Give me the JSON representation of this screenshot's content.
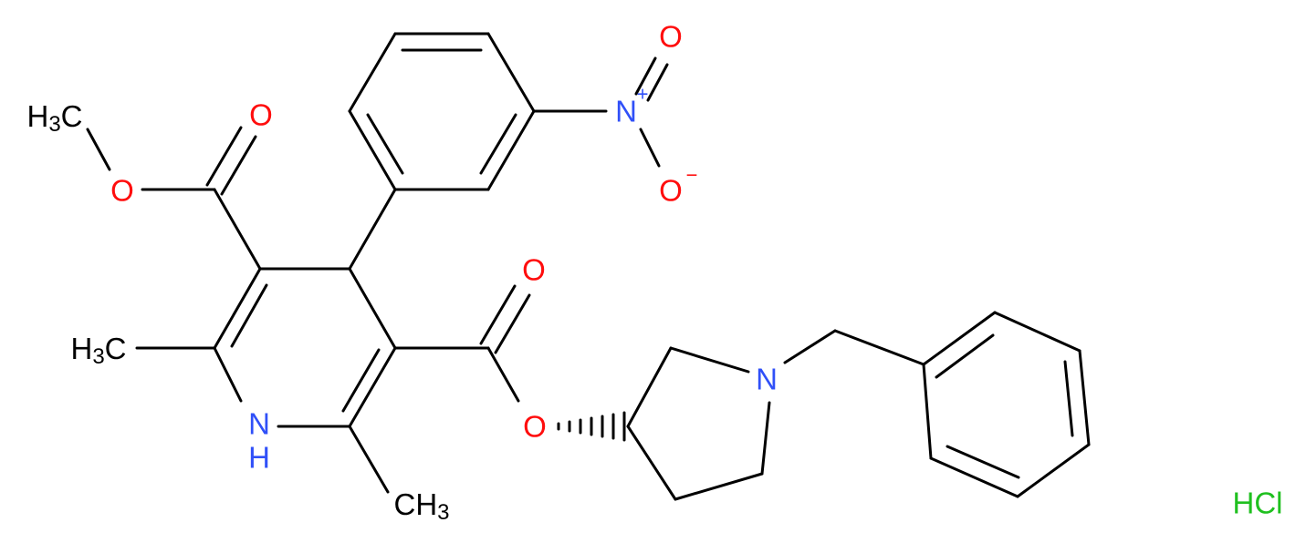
{
  "atoms": [
    {
      "label": "H3C"
    },
    {
      "label": "O"
    },
    {
      "label": "O"
    },
    {
      "label": "N",
      "charge": "+"
    },
    {
      "label": "O"
    },
    {
      "label": "O",
      "charge": "−"
    },
    {
      "label": "H3C"
    },
    {
      "label": "N"
    },
    {
      "label": "H"
    },
    {
      "label": "CH3"
    },
    {
      "label": "O"
    },
    {
      "label": "O"
    },
    {
      "label": "N"
    }
  ],
  "salt": "HCl"
}
